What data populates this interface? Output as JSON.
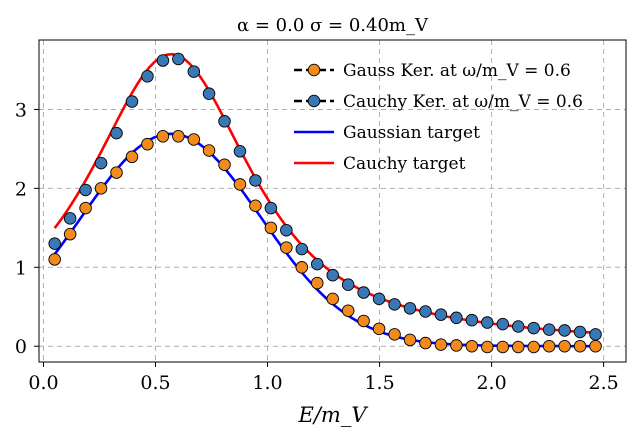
{
  "chart_data": {
    "type": "line",
    "title": "α = 0.0    σ = 0.40m_V",
    "xlabel": "E/m_V",
    "ylabel": "",
    "xlim": [
      -0.02,
      2.6
    ],
    "ylim": [
      -0.2,
      3.88
    ],
    "xticks": [
      0.0,
      0.5,
      1.0,
      1.5,
      2.0,
      2.5
    ],
    "xtick_labels": [
      "0.0",
      "0.5",
      "1.0",
      "1.5",
      "2.0",
      "2.5"
    ],
    "yticks": [
      0,
      1,
      2,
      3
    ],
    "ytick_labels": [
      "0",
      "1",
      "2",
      "3"
    ],
    "grid": true,
    "legend_position": "top-right",
    "legend": [
      {
        "label": "Gauss Ker. at ω/m_V = 0.6"
      },
      {
        "label": "Cauchy Ker. at ω/m_V = 0.6"
      },
      {
        "label": "Gaussian target"
      },
      {
        "label": "Cauchy target"
      }
    ],
    "x": [
      0.05,
      0.119,
      0.188,
      0.257,
      0.326,
      0.395,
      0.464,
      0.533,
      0.602,
      0.671,
      0.739,
      0.808,
      0.877,
      0.946,
      1.015,
      1.084,
      1.153,
      1.222,
      1.291,
      1.36,
      1.429,
      1.498,
      1.567,
      1.636,
      1.705,
      1.774,
      1.843,
      1.912,
      1.981,
      2.05,
      2.119,
      2.188,
      2.257,
      2.326,
      2.395,
      2.464
    ],
    "series": [
      {
        "name": "Gauss Ker. at ω/m_V = 0.6",
        "kind": "markers",
        "color": "#f28a1c",
        "values": [
          1.1,
          1.42,
          1.75,
          2.0,
          2.2,
          2.4,
          2.56,
          2.66,
          2.66,
          2.62,
          2.48,
          2.3,
          2.05,
          1.78,
          1.5,
          1.25,
          1.0,
          0.8,
          0.6,
          0.45,
          0.32,
          0.22,
          0.15,
          0.08,
          0.04,
          0.02,
          0.01,
          0.0,
          -0.01,
          -0.01,
          -0.01,
          -0.01,
          0.0,
          0.0,
          0.0,
          0.0
        ]
      },
      {
        "name": "Cauchy Ker. at ω/m_V = 0.6",
        "kind": "markers",
        "color": "#3a78b5",
        "values": [
          1.3,
          1.62,
          1.98,
          2.32,
          2.7,
          3.1,
          3.42,
          3.62,
          3.64,
          3.48,
          3.2,
          2.85,
          2.47,
          2.1,
          1.75,
          1.47,
          1.23,
          1.04,
          0.9,
          0.78,
          0.68,
          0.6,
          0.53,
          0.48,
          0.44,
          0.4,
          0.36,
          0.33,
          0.3,
          0.28,
          0.25,
          0.23,
          0.21,
          0.2,
          0.18,
          0.15
        ]
      },
      {
        "name": "Gaussian target",
        "kind": "line",
        "color": "#0000ff",
        "function": "gaussian",
        "peak_x": 0.57,
        "peak_y": 2.68
      },
      {
        "name": "Cauchy target",
        "kind": "line",
        "color": "#ff0000",
        "function": "cauchy",
        "peak_x": 0.57,
        "peak_y": 3.7
      }
    ]
  }
}
